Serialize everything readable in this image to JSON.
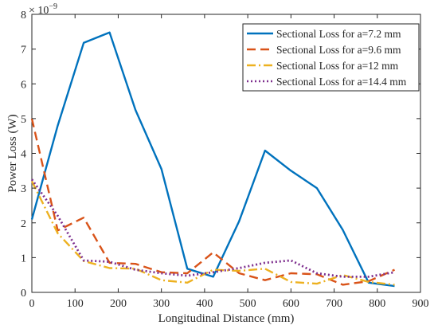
{
  "chart_data": {
    "type": "line",
    "title": "",
    "xlabel": "Longitudinal Distance (mm)",
    "ylabel": "Power Loss (W)",
    "y_multiplier": {
      "base": "× 10",
      "exponent": "−9"
    },
    "xlim": [
      0,
      900
    ],
    "ylim": [
      0,
      8
    ],
    "x_ticks": [
      0,
      100,
      200,
      300,
      400,
      500,
      600,
      700,
      800,
      900
    ],
    "y_ticks": [
      0,
      1,
      2,
      3,
      4,
      5,
      6,
      7,
      8
    ],
    "grid": false,
    "legend_position": "top-right",
    "series": [
      {
        "name": "Sectional Loss for a=7.2 mm",
        "color": "#0072BD",
        "dash": "solid",
        "x": [
          0,
          60,
          120,
          180,
          240,
          300,
          360,
          420,
          480,
          540,
          600,
          660,
          720,
          780,
          840
        ],
        "y": [
          2.1,
          4.8,
          7.18,
          7.48,
          5.25,
          3.55,
          0.68,
          0.45,
          2.05,
          4.08,
          3.5,
          3.0,
          1.8,
          0.28,
          0.18
        ]
      },
      {
        "name": "Sectional Loss for a=9.6 mm",
        "color": "#D95319",
        "dash": "dash",
        "x": [
          0,
          60,
          120,
          180,
          240,
          300,
          360,
          420,
          480,
          540,
          600,
          660,
          720,
          780,
          840
        ],
        "y": [
          5.0,
          1.78,
          2.15,
          0.85,
          0.82,
          0.58,
          0.55,
          1.15,
          0.55,
          0.35,
          0.55,
          0.52,
          0.22,
          0.32,
          0.65
        ]
      },
      {
        "name": "Sectional Loss for a=12 mm",
        "color": "#EDB120",
        "dash": "dashdot",
        "x": [
          0,
          60,
          120,
          180,
          240,
          300,
          360,
          420,
          480,
          540,
          600,
          660,
          720,
          780,
          840
        ],
        "y": [
          3.2,
          1.7,
          0.9,
          0.7,
          0.68,
          0.35,
          0.28,
          0.65,
          0.62,
          0.68,
          0.3,
          0.25,
          0.5,
          0.3,
          0.22
        ]
      },
      {
        "name": "Sectional Loss for a=14.4 mm",
        "color": "#7E2F8E",
        "dash": "dot",
        "x": [
          0,
          60,
          120,
          180,
          240,
          300,
          360,
          420,
          480,
          540,
          600,
          660,
          720,
          780,
          840
        ],
        "y": [
          3.25,
          2.2,
          0.92,
          0.88,
          0.65,
          0.55,
          0.48,
          0.58,
          0.7,
          0.85,
          0.92,
          0.55,
          0.45,
          0.45,
          0.58
        ]
      }
    ]
  }
}
